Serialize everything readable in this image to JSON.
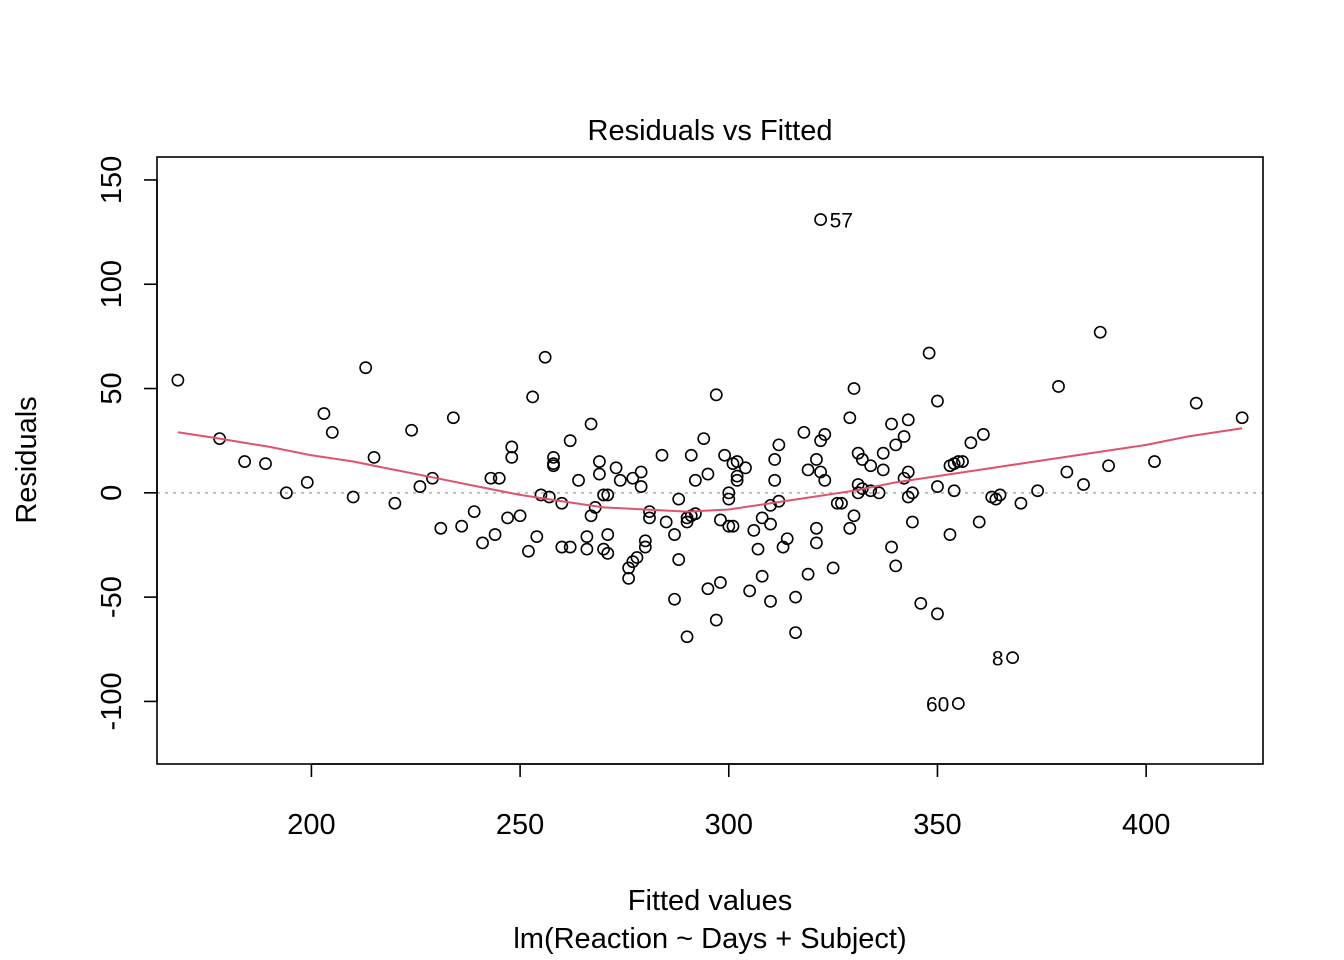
{
  "chart_data": {
    "type": "scatter",
    "title": "Residuals vs Fitted",
    "xlabel": "Fitted values",
    "subtitle": "lm(Reaction ~ Days + Subject)",
    "ylabel": "Residuals",
    "xlim": [
      163,
      428
    ],
    "ylim": [
      -130,
      161
    ],
    "x_ticks": [
      200,
      250,
      300,
      350,
      400
    ],
    "y_ticks": [
      -100,
      -50,
      0,
      50,
      100,
      150
    ],
    "x_tick_labels": [
      "200",
      "250",
      "300",
      "350",
      "400"
    ],
    "y_tick_labels": [
      "-100",
      "-50",
      "0",
      "50",
      "100",
      "150"
    ],
    "grid": false,
    "zero_line": 0,
    "colors": {
      "points": "#000000",
      "smoother": "#df536b",
      "zero_line": "#bebebe"
    },
    "points": [
      [
        168,
        54
      ],
      [
        178,
        26
      ],
      [
        184,
        15
      ],
      [
        189,
        14
      ],
      [
        194,
        0
      ],
      [
        199,
        5
      ],
      [
        203,
        38
      ],
      [
        205,
        29
      ],
      [
        210,
        -2
      ],
      [
        213,
        60
      ],
      [
        215,
        17
      ],
      [
        220,
        -5
      ],
      [
        224,
        30
      ],
      [
        226,
        3
      ],
      [
        229,
        7
      ],
      [
        231,
        -17
      ],
      [
        234,
        36
      ],
      [
        236,
        -16
      ],
      [
        239,
        -9
      ],
      [
        241,
        -24
      ],
      [
        243,
        7
      ],
      [
        244,
        -20
      ],
      [
        245,
        7
      ],
      [
        247,
        -12
      ],
      [
        248,
        22
      ],
      [
        248,
        17
      ],
      [
        250,
        -11
      ],
      [
        252,
        -28
      ],
      [
        253,
        46
      ],
      [
        254,
        -21
      ],
      [
        255,
        -1
      ],
      [
        256,
        65
      ],
      [
        257,
        -2
      ],
      [
        258,
        17
      ],
      [
        258,
        14
      ],
      [
        258,
        13
      ],
      [
        260,
        -5
      ],
      [
        260,
        -26
      ],
      [
        262,
        25
      ],
      [
        262,
        -26
      ],
      [
        264,
        6
      ],
      [
        266,
        -21
      ],
      [
        266,
        -27
      ],
      [
        267,
        33
      ],
      [
        267,
        -11
      ],
      [
        268,
        -7
      ],
      [
        269,
        15
      ],
      [
        269,
        9
      ],
      [
        270,
        -1
      ],
      [
        270,
        -27
      ],
      [
        271,
        -20
      ],
      [
        271,
        -29
      ],
      [
        271,
        -1
      ],
      [
        273,
        12
      ],
      [
        274,
        6
      ],
      [
        276,
        -36
      ],
      [
        276,
        -41
      ],
      [
        277,
        -33
      ],
      [
        277,
        7
      ],
      [
        278,
        -31
      ],
      [
        279,
        3
      ],
      [
        279,
        10
      ],
      [
        280,
        -26
      ],
      [
        280,
        -23
      ],
      [
        281,
        -9
      ],
      [
        281,
        -12
      ],
      [
        284,
        18
      ],
      [
        285,
        -14
      ],
      [
        287,
        -20
      ],
      [
        287,
        -51
      ],
      [
        288,
        -3
      ],
      [
        288,
        -32
      ],
      [
        290,
        -14
      ],
      [
        290,
        -69
      ],
      [
        290,
        -12
      ],
      [
        291,
        -11
      ],
      [
        291,
        18
      ],
      [
        292,
        -10
      ],
      [
        292,
        6
      ],
      [
        294,
        26
      ],
      [
        295,
        9
      ],
      [
        295,
        -46
      ],
      [
        297,
        47
      ],
      [
        297,
        -61
      ],
      [
        298,
        -43
      ],
      [
        298,
        -13
      ],
      [
        299,
        18
      ],
      [
        300,
        -16
      ],
      [
        300,
        -3
      ],
      [
        300,
        0
      ],
      [
        301,
        -16
      ],
      [
        301,
        14
      ],
      [
        302,
        15
      ],
      [
        302,
        8
      ],
      [
        302,
        6
      ],
      [
        304,
        12
      ],
      [
        305,
        -47
      ],
      [
        306,
        -18
      ],
      [
        307,
        -27
      ],
      [
        308,
        -12
      ],
      [
        308,
        -40
      ],
      [
        310,
        -52
      ],
      [
        310,
        -15
      ],
      [
        310,
        -6
      ],
      [
        311,
        16
      ],
      [
        311,
        6
      ],
      [
        312,
        23
      ],
      [
        312,
        -4
      ],
      [
        313,
        -26
      ],
      [
        314,
        -22
      ],
      [
        316,
        -67
      ],
      [
        316,
        -50
      ],
      [
        318,
        29
      ],
      [
        319,
        -39
      ],
      [
        319,
        11
      ],
      [
        321,
        -17
      ],
      [
        321,
        -24
      ],
      [
        321,
        16
      ],
      [
        322,
        25
      ],
      [
        322,
        10
      ],
      [
        322,
        131
      ],
      [
        323,
        28
      ],
      [
        323,
        6
      ],
      [
        325,
        -36
      ],
      [
        326,
        -5
      ],
      [
        327,
        -5
      ],
      [
        329,
        36
      ],
      [
        329,
        -17
      ],
      [
        330,
        50
      ],
      [
        330,
        -11
      ],
      [
        331,
        19
      ],
      [
        331,
        4
      ],
      [
        331,
        0
      ],
      [
        332,
        16
      ],
      [
        332,
        2
      ],
      [
        334,
        13
      ],
      [
        334,
        1
      ],
      [
        336,
        0
      ],
      [
        337,
        19
      ],
      [
        337,
        11
      ],
      [
        339,
        33
      ],
      [
        339,
        -26
      ],
      [
        340,
        23
      ],
      [
        340,
        -35
      ],
      [
        342,
        27
      ],
      [
        342,
        7
      ],
      [
        343,
        35
      ],
      [
        343,
        10
      ],
      [
        343,
        -2
      ],
      [
        344,
        -14
      ],
      [
        344,
        0
      ],
      [
        346,
        -53
      ],
      [
        348,
        67
      ],
      [
        350,
        -58
      ],
      [
        350,
        44
      ],
      [
        350,
        3
      ],
      [
        353,
        -20
      ],
      [
        353,
        13
      ],
      [
        354,
        1
      ],
      [
        354,
        14
      ],
      [
        355,
        15
      ],
      [
        355,
        -101
      ],
      [
        356,
        15
      ],
      [
        358,
        24
      ],
      [
        360,
        -14
      ],
      [
        361,
        28
      ],
      [
        363,
        -2
      ],
      [
        364,
        -3
      ],
      [
        365,
        -1
      ],
      [
        368,
        -79
      ],
      [
        370,
        -5
      ],
      [
        374,
        1
      ],
      [
        379,
        51
      ],
      [
        381,
        10
      ],
      [
        385,
        4
      ],
      [
        389,
        77
      ],
      [
        391,
        13
      ],
      [
        402,
        15
      ],
      [
        412,
        43
      ],
      [
        423,
        36
      ]
    ],
    "smoother": [
      [
        168,
        29
      ],
      [
        178,
        26
      ],
      [
        190,
        22
      ],
      [
        200,
        18
      ],
      [
        210,
        15
      ],
      [
        220,
        11
      ],
      [
        230,
        7
      ],
      [
        240,
        3
      ],
      [
        250,
        -1
      ],
      [
        260,
        -4
      ],
      [
        270,
        -7
      ],
      [
        280,
        -8
      ],
      [
        290,
        -9
      ],
      [
        300,
        -8
      ],
      [
        310,
        -5
      ],
      [
        320,
        -2
      ],
      [
        330,
        1
      ],
      [
        340,
        5
      ],
      [
        350,
        8
      ],
      [
        360,
        11
      ],
      [
        370,
        14
      ],
      [
        380,
        17
      ],
      [
        390,
        20
      ],
      [
        400,
        23
      ],
      [
        410,
        27
      ],
      [
        423,
        31
      ]
    ],
    "point_labels": [
      {
        "text": "57",
        "x": 322,
        "y": 131,
        "side": "right"
      },
      {
        "text": "8",
        "x": 368,
        "y": -79,
        "side": "left"
      },
      {
        "text": "60",
        "x": 355,
        "y": -101,
        "side": "left"
      }
    ]
  }
}
